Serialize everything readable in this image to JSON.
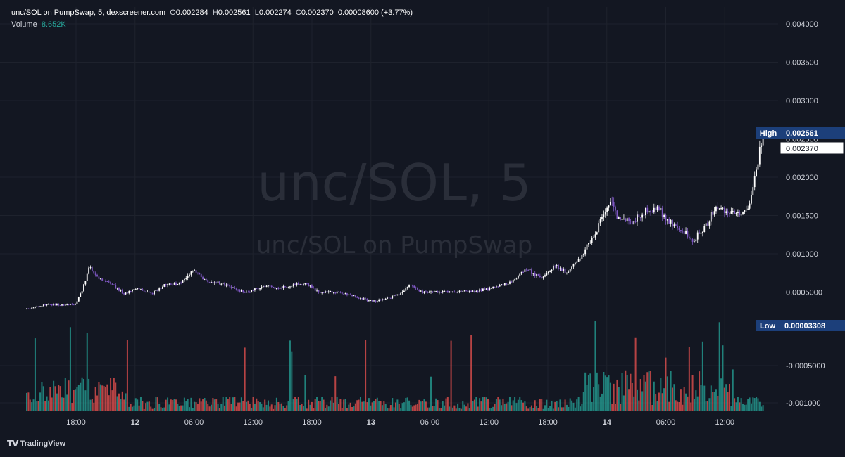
{
  "legend": {
    "symbol": "unc/SOL on PumpSwap, 5, dexscreener.com",
    "o_label": "O",
    "o_value": "0.002284",
    "h_label": "H",
    "h_value": "0.002561",
    "l_label": "L",
    "l_value": "0.002274",
    "c_label": "C",
    "c_value": "0.002370",
    "change": "0.00008600 (+3.77%)",
    "volume_label": "Volume",
    "volume_value": "8.652K"
  },
  "watermark": {
    "line1": "unc/SOL, 5",
    "line2": "unc/SOL on PumpSwap"
  },
  "badges": {
    "high_label": "High",
    "high_value": "0.002561",
    "last_value": "0.002370",
    "low_label": "Low",
    "low_value": "0.00003308"
  },
  "footer": {
    "brand": "TradingView"
  },
  "colors": {
    "background": "#131722",
    "grid": "#1e222d",
    "candle_up": "#ffffff",
    "candle_down": "#7e57c2",
    "volume_up": "#26a69a",
    "volume_down": "#ef5350",
    "badge": "#1c3f7a"
  },
  "chart_data": {
    "type": "candlestick",
    "interval": "5",
    "y_axis": {
      "ticks": [
        "0.004000",
        "0.003500",
        "0.003000",
        "0.002500",
        "0.002000",
        "0.001500",
        "0.001000",
        "0.0005000"
      ],
      "tick_values": [
        0.004,
        0.0035,
        0.003,
        0.0025,
        0.002,
        0.0015,
        0.001,
        0.0005
      ],
      "range": [
        3.308e-05,
        0.0041
      ]
    },
    "volume_axis": {
      "ticks": [
        "-0.0005000",
        "-0.001000"
      ]
    },
    "x_axis": {
      "ticks": [
        "18:00",
        "12",
        "06:00",
        "12:00",
        "18:00",
        "13",
        "06:00",
        "12:00",
        "18:00",
        "14",
        "06:00",
        "12:00"
      ],
      "bold": [
        false,
        true,
        false,
        false,
        false,
        true,
        false,
        false,
        false,
        true,
        false,
        false
      ]
    },
    "price_path": [
      [
        0,
        0.00028
      ],
      [
        3,
        0.00034
      ],
      [
        5,
        0.00033
      ],
      [
        7,
        0.00034
      ],
      [
        8,
        0.00052
      ],
      [
        9,
        0.00085
      ],
      [
        10,
        0.0007
      ],
      [
        12,
        0.00062
      ],
      [
        14,
        0.00048
      ],
      [
        16,
        0.00055
      ],
      [
        18,
        0.00048
      ],
      [
        20,
        0.0006
      ],
      [
        22,
        0.00062
      ],
      [
        24,
        0.00078
      ],
      [
        26,
        0.00063
      ],
      [
        28,
        0.00062
      ],
      [
        30,
        0.00053
      ],
      [
        32,
        0.0005
      ],
      [
        34,
        0.00058
      ],
      [
        36,
        0.00055
      ],
      [
        38,
        0.00058
      ],
      [
        40,
        0.00062
      ],
      [
        42,
        0.0005
      ],
      [
        44,
        0.0005
      ],
      [
        46,
        0.00048
      ],
      [
        48,
        0.00042
      ],
      [
        50,
        0.00038
      ],
      [
        52,
        0.00042
      ],
      [
        54,
        0.00048
      ],
      [
        55,
        0.0006
      ],
      [
        57,
        0.0005
      ],
      [
        59,
        0.0005
      ],
      [
        62,
        0.0005
      ],
      [
        65,
        0.00052
      ],
      [
        68,
        0.00058
      ],
      [
        70,
        0.00065
      ],
      [
        72,
        0.0008
      ],
      [
        74,
        0.00068
      ],
      [
        76,
        0.00085
      ],
      [
        78,
        0.00075
      ],
      [
        80,
        0.001
      ],
      [
        82,
        0.0013
      ],
      [
        83,
        0.0015
      ],
      [
        84,
        0.0017
      ],
      [
        85,
        0.0015
      ],
      [
        87,
        0.0014
      ],
      [
        89,
        0.00155
      ],
      [
        91,
        0.0016
      ],
      [
        92,
        0.00145
      ],
      [
        94,
        0.00132
      ],
      [
        96,
        0.00118
      ],
      [
        98,
        0.0014
      ],
      [
        99,
        0.0016
      ],
      [
        101,
        0.00155
      ],
      [
        103,
        0.00155
      ],
      [
        104,
        0.00165
      ],
      [
        105,
        0.0021
      ],
      [
        106,
        0.00256
      ]
    ],
    "high": 0.002561,
    "low": 3.308e-05,
    "last": 0.00237
  }
}
